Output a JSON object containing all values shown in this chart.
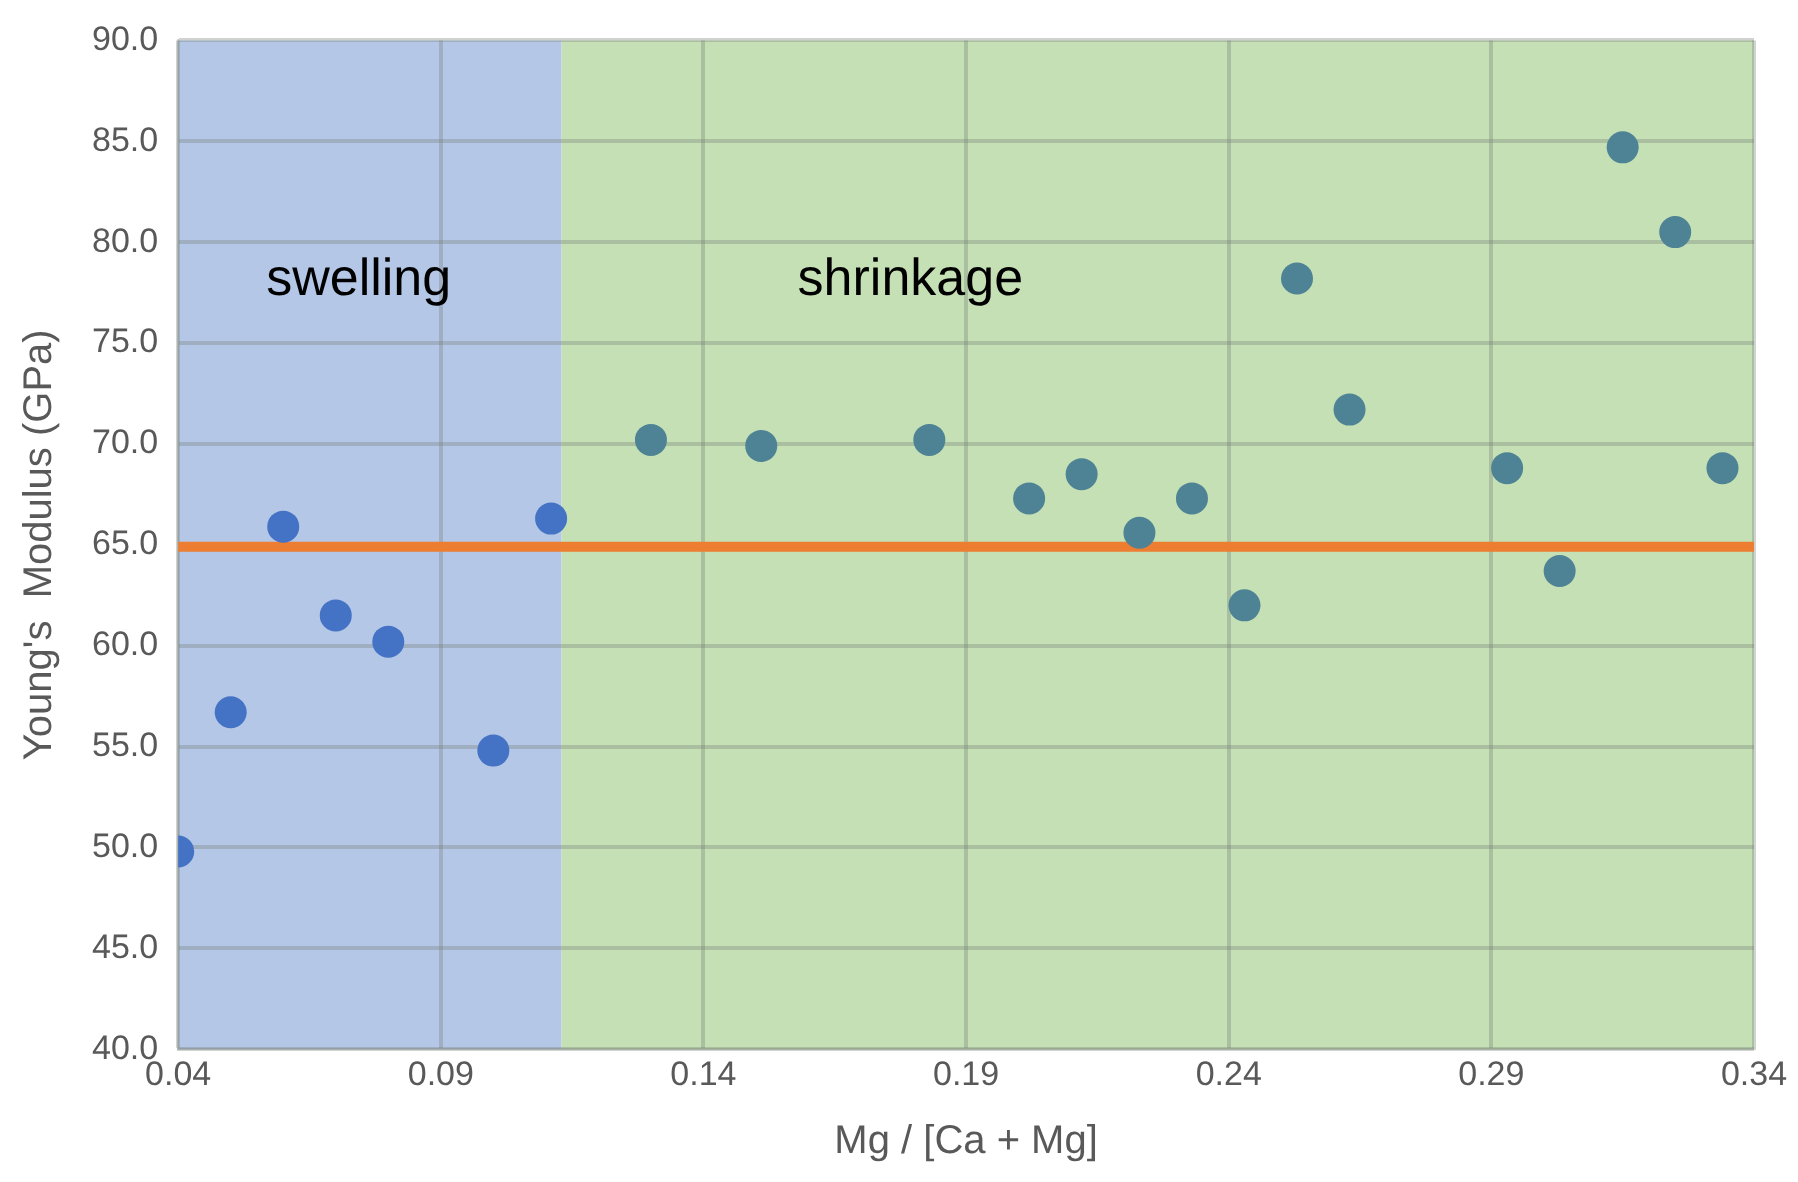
{
  "chart_data": {
    "type": "scatter",
    "xlabel": "Mg / [Ca + Mg]",
    "ylabel": "Young's  Modulus (GPa)",
    "series": [
      {
        "color": "#4472c4",
        "x": [
          0.04,
          0.05,
          0.06,
          0.07,
          0.08,
          0.1,
          0.111
        ],
        "values": [
          49.8,
          56.7,
          65.9,
          61.5,
          60.2,
          54.8,
          66.3
        ]
      },
      {
        "color": "#4e8295",
        "x": [
          0.13,
          0.151,
          0.183,
          0.202,
          0.212,
          0.223,
          0.233,
          0.243,
          0.253,
          0.263,
          0.293,
          0.303,
          0.315,
          0.325,
          0.334
        ],
        "values": [
          70.2,
          69.9,
          70.2,
          67.3,
          68.5,
          65.6,
          67.3,
          62.0,
          78.2,
          71.7,
          68.8,
          63.7,
          84.7,
          80.5,
          68.8
        ]
      }
    ],
    "xlim": [
      0.04,
      0.34
    ],
    "xticks": [
      0.04,
      0.09,
      0.14,
      0.19,
      0.24,
      0.29,
      0.34
    ],
    "ylim": [
      40,
      90
    ],
    "yticks": [
      {
        "value": 40,
        "label": "40.0"
      },
      {
        "value": 45,
        "label": "45.0"
      },
      {
        "value": 50,
        "label": "50.0"
      },
      {
        "value": 55,
        "label": "55.0"
      },
      {
        "value": 60,
        "label": "60.0"
      },
      {
        "value": 65,
        "label": "65.0"
      },
      {
        "value": 70,
        "label": "70.0"
      },
      {
        "value": 75,
        "label": "75.0"
      },
      {
        "value": 80,
        "label": "80.0"
      },
      {
        "value": 85,
        "label": "85.0"
      },
      {
        "value": 90,
        "label": "90.0"
      }
    ],
    "ref_lines": [
      {
        "axis": "y",
        "value": 64.9,
        "color": "#ed7d31"
      }
    ],
    "bands": [
      {
        "axis": "x",
        "from": 0.04,
        "to": 0.113,
        "label": "swelling",
        "color": "#b4c7e7"
      },
      {
        "axis": "x",
        "from": 0.113,
        "to": 0.34,
        "label": "shrinkage",
        "color": "#c5e0b4"
      }
    ],
    "grid": true,
    "legend": false,
    "marker": "circle"
  }
}
